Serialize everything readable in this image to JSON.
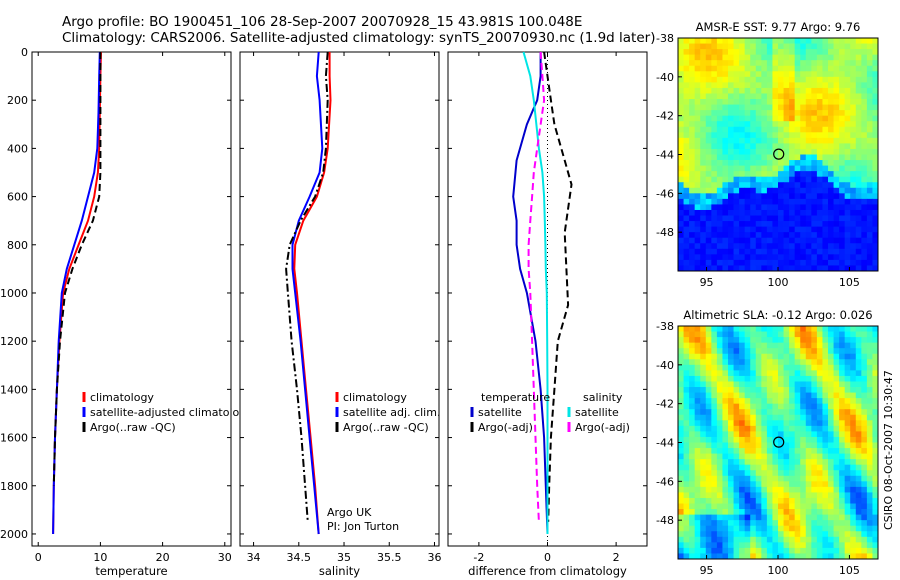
{
  "header": {
    "line1": "Argo profile: BO 1900451_106 28-Sep-2007 20070928_15 43.981S 100.048E",
    "line2": "Climatology: CARS2006. Satellite-adjusted climatology: synTS_20070930.nc (1.9d later)"
  },
  "side_label": "CSIRO 08-Oct-2007 10:30:47",
  "chart_data": [
    {
      "type": "line",
      "xlabel": "temperature",
      "xlim": [
        -1,
        31
      ],
      "ylim": [
        2050,
        0
      ],
      "x_ticks": [
        "0",
        "10",
        "20",
        "30"
      ],
      "y_ticks": [
        "0",
        "200",
        "400",
        "600",
        "800",
        "1000",
        "1200",
        "1400",
        "1600",
        "1800",
        "2000"
      ],
      "legend": [
        "climatology",
        "satellite-adjusted climatology",
        "Argo(..raw -QC)"
      ],
      "series": [
        {
          "name": "climatology",
          "color": "#ff0000",
          "style": "solid",
          "x": [
            10.1,
            10.0,
            9.9,
            9.8,
            9.6,
            9.0,
            8.0,
            6.5,
            5.0,
            4.0,
            3.4,
            3.0,
            2.7,
            2.5,
            2.4
          ],
          "y": [
            0,
            100,
            250,
            400,
            500,
            600,
            700,
            800,
            900,
            1000,
            1200,
            1400,
            1600,
            1800,
            2000
          ]
        },
        {
          "name": "satellite-adjusted climatology",
          "color": "#0000ff",
          "style": "solid",
          "x": [
            9.9,
            9.8,
            9.7,
            9.5,
            9.0,
            8.0,
            7.0,
            5.8,
            4.6,
            3.8,
            3.3,
            3.0,
            2.7,
            2.5,
            2.4
          ],
          "y": [
            0,
            100,
            250,
            400,
            500,
            600,
            700,
            800,
            900,
            1000,
            1200,
            1400,
            1600,
            1800,
            2000
          ]
        },
        {
          "name": "Argo(..raw -QC)",
          "color": "#000000",
          "style": "dash",
          "x": [
            10.0,
            10.0,
            10.0,
            10.0,
            10.0,
            9.8,
            8.8,
            7.0,
            5.5,
            4.3,
            3.5,
            3.0,
            2.7,
            2.5
          ],
          "y": [
            0,
            100,
            250,
            400,
            500,
            600,
            700,
            800,
            900,
            1000,
            1200,
            1400,
            1600,
            1800
          ]
        }
      ]
    },
    {
      "type": "line",
      "xlabel": "salinity",
      "xlim": [
        33.85,
        36.05
      ],
      "ylim": [
        2050,
        0
      ],
      "x_ticks": [
        "34",
        "34.5",
        "35",
        "35.5",
        "36"
      ],
      "legend": [
        "climatology",
        "satellite adj. clim.",
        "Argo(..raw -QC)"
      ],
      "annotation": [
        "Argo UK",
        "PI: Jon Turton"
      ],
      "series": [
        {
          "name": "climatology",
          "color": "#ff0000",
          "style": "solid",
          "x": [
            34.84,
            34.84,
            34.85,
            34.82,
            34.78,
            34.7,
            34.55,
            34.46,
            34.45,
            34.48,
            34.53,
            34.58,
            34.63,
            34.68,
            34.72
          ],
          "y": [
            0,
            100,
            200,
            400,
            500,
            600,
            700,
            800,
            900,
            1000,
            1200,
            1400,
            1600,
            1800,
            2000
          ]
        },
        {
          "name": "satellite adj. clim.",
          "color": "#0000ff",
          "style": "solid",
          "x": [
            34.72,
            34.7,
            34.73,
            34.76,
            34.73,
            34.62,
            34.5,
            34.43,
            34.43,
            34.46,
            34.52,
            34.57,
            34.62,
            34.67,
            34.72
          ],
          "y": [
            0,
            100,
            200,
            400,
            500,
            600,
            700,
            800,
            900,
            1000,
            1200,
            1400,
            1600,
            1800,
            2000
          ]
        },
        {
          "name": "Argo(..raw -QC)",
          "color": "#000000",
          "style": "dashdot",
          "x": [
            34.82,
            34.8,
            34.82,
            34.8,
            34.77,
            34.68,
            34.52,
            34.4,
            34.36,
            34.38,
            34.42,
            34.48,
            34.53,
            34.57,
            34.6
          ],
          "y": [
            0,
            100,
            200,
            400,
            500,
            600,
            700,
            800,
            900,
            1000,
            1200,
            1400,
            1600,
            1800,
            1950
          ]
        }
      ]
    },
    {
      "type": "line",
      "xlabel": "difference from climatology",
      "xlim": [
        -2.9,
        2.9
      ],
      "ylim": [
        2050,
        0
      ],
      "x_ticks": [
        "-2",
        "0",
        "2"
      ],
      "legend": [
        "temperature",
        "satellite",
        "Argo(-adj)",
        "salinity",
        "satellite",
        "Argo(-adj)"
      ],
      "series": [
        {
          "name": "temperature satellite",
          "color": "#0000cc",
          "style": "solid",
          "x": [
            -0.2,
            -0.2,
            -0.3,
            -0.6,
            -0.9,
            -1.0,
            -0.9,
            -0.9,
            -0.8,
            -0.6,
            -0.35,
            -0.2,
            -0.1,
            -0.05,
            0.0
          ],
          "y": [
            0,
            100,
            200,
            300,
            450,
            600,
            700,
            800,
            900,
            1000,
            1200,
            1400,
            1600,
            1800,
            2000
          ]
        },
        {
          "name": "temperature Argo(-adj)",
          "color": "#000000",
          "style": "dash",
          "x": [
            -0.1,
            0.0,
            0.1,
            0.2,
            0.5,
            0.7,
            0.6,
            0.5,
            0.55,
            0.6,
            0.3,
            0.2,
            0.1,
            0.05,
            0.02
          ],
          "y": [
            0,
            100,
            200,
            300,
            450,
            550,
            650,
            750,
            900,
            1050,
            1200,
            1400,
            1600,
            1800,
            1950
          ]
        },
        {
          "name": "salinity satellite",
          "color": "#00e5e5",
          "style": "solid",
          "x": [
            -0.7,
            -0.5,
            -0.4,
            -0.25,
            -0.15,
            -0.1,
            -0.08,
            -0.06,
            -0.05,
            -0.02,
            -0.01,
            0.0,
            0.0,
            0.0,
            0.0
          ],
          "y": [
            0,
            100,
            200,
            400,
            500,
            600,
            700,
            800,
            900,
            1000,
            1200,
            1400,
            1600,
            1800,
            2000
          ]
        },
        {
          "name": "salinity Argo(-adj)",
          "color": "#ff00ff",
          "style": "dash",
          "x": [
            -0.2,
            -0.15,
            -0.1,
            -0.3,
            -0.4,
            -0.45,
            -0.5,
            -0.55,
            -0.55,
            -0.5,
            -0.45,
            -0.4,
            -0.35,
            -0.3,
            -0.25
          ],
          "y": [
            0,
            100,
            200,
            400,
            500,
            600,
            700,
            800,
            900,
            1000,
            1200,
            1400,
            1600,
            1800,
            1950
          ]
        }
      ],
      "zero_line": 0
    },
    {
      "type": "heatmap",
      "title": "AMSR-E SST: 9.77 Argo: 9.76",
      "xlim": [
        93,
        107
      ],
      "ylim": [
        -50,
        -38
      ],
      "x_ticks": [
        "95",
        "100",
        "105"
      ],
      "y_ticks": [
        "-38",
        "-40",
        "-42",
        "-44",
        "-46",
        "-48"
      ],
      "marker": {
        "x": 100.05,
        "y": -43.98
      }
    },
    {
      "type": "heatmap",
      "title": "Altimetric SLA: -0.12 Argo: 0.026",
      "xlim": [
        93,
        107
      ],
      "ylim": [
        -50,
        -38
      ],
      "x_ticks": [
        "95",
        "100",
        "105"
      ],
      "y_ticks": [
        "-38",
        "-40",
        "-42",
        "-44",
        "-46",
        "-48"
      ],
      "marker": {
        "x": 100.05,
        "y": -43.98
      }
    }
  ]
}
